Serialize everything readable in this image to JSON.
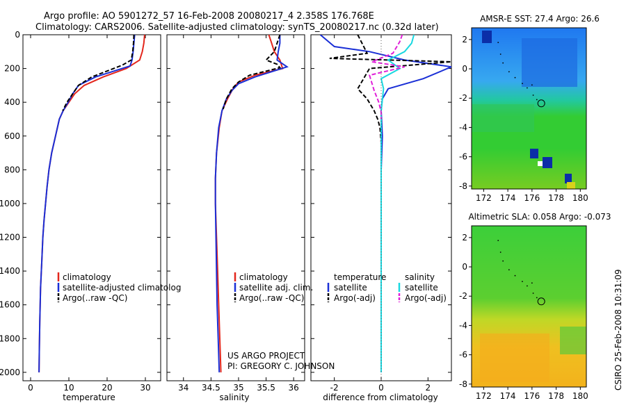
{
  "title": {
    "line1": "Argo profile: AO 5901272_57 16-Feb-2008 20080217_4 2.358S 176.768E",
    "line2": "Climatology: CARS2006. Satellite-adjusted climatology: synTS_20080217.nc (0.32d later)"
  },
  "footer": {
    "line1": "US ARGO PROJECT",
    "line2": "PI: GREGORY C. JOHNSON"
  },
  "timestamp": "CSIRO 25-Feb-2008 10:31:09",
  "colors": {
    "climatology": "#e3261c",
    "satellite": "#1a2fd6",
    "argo": "#000000",
    "salinity_sat": "#19d8e0",
    "salinity_argo": "#e020d8"
  },
  "chart_data": [
    {
      "type": "line",
      "panel": "temperature",
      "xlabel": "temperature",
      "ylabel": "",
      "xlim": [
        -2,
        34
      ],
      "ylim": [
        2050,
        0
      ],
      "xticks": [
        0,
        10,
        20,
        30
      ],
      "yticks": [
        0,
        200,
        400,
        600,
        800,
        1000,
        1200,
        1400,
        1600,
        1800,
        2000
      ],
      "series": [
        {
          "name": "climatology",
          "color": "#e3261c",
          "dash": "solid",
          "x": [
            29.8,
            29.6,
            29.2,
            28.5,
            25,
            19,
            14,
            11.5,
            10,
            8.5,
            7.5,
            6.5,
            5.5,
            4.8,
            4.3,
            3.9,
            3.5,
            3.2,
            2.9,
            2.6,
            2.4,
            2.3,
            2.2
          ],
          "y": [
            0,
            50,
            100,
            150,
            200,
            250,
            300,
            350,
            400,
            450,
            500,
            600,
            700,
            800,
            900,
            1000,
            1100,
            1200,
            1350,
            1500,
            1700,
            1850,
            2000
          ]
        },
        {
          "name": "satellite-adjusted climatology",
          "color": "#1a2fd6",
          "dash": "solid",
          "x": [
            27.2,
            27.0,
            26.8,
            26.5,
            26.0,
            17,
            12.5,
            11,
            9.8,
            8.5,
            7.5,
            6.5,
            5.5,
            4.8,
            4.3,
            3.9,
            3.5,
            3.2,
            2.9,
            2.6,
            2.4,
            2.3,
            2.2
          ],
          "y": [
            0,
            50,
            100,
            150,
            185,
            250,
            300,
            350,
            400,
            450,
            500,
            600,
            700,
            800,
            900,
            1000,
            1100,
            1200,
            1350,
            1500,
            1700,
            1850,
            2000
          ]
        },
        {
          "name": "Argo(..raw -QC)",
          "color": "#000000",
          "dash": "dashed",
          "x": [
            27.0,
            26.9,
            26.7,
            26.3,
            24,
            16,
            12.5,
            11,
            9.5,
            8.4
          ],
          "y": [
            0,
            50,
            100,
            150,
            180,
            250,
            300,
            350,
            400,
            450
          ]
        }
      ],
      "legend": [
        "climatology",
        "satellite-adjusted climatolog",
        "Argo(..raw -QC)"
      ]
    },
    {
      "type": "line",
      "panel": "salinity",
      "xlabel": "salinity",
      "ylabel": "",
      "xlim": [
        33.7,
        36.2
      ],
      "ylim": [
        2050,
        0
      ],
      "xticks": [
        34,
        34.5,
        35,
        35.5,
        36
      ],
      "xticklabels": [
        "34",
        "34.5",
        "35",
        "35.5",
        "36"
      ],
      "series": [
        {
          "name": "climatology",
          "color": "#e3261c",
          "dash": "solid",
          "x": [
            35.55,
            35.6,
            35.65,
            35.75,
            35.8,
            35.3,
            35.0,
            34.9,
            34.8,
            34.7,
            34.65,
            34.6,
            34.58,
            34.58,
            34.6,
            34.62,
            34.64,
            34.66,
            34.68
          ],
          "y": [
            0,
            50,
            100,
            150,
            200,
            240,
            280,
            320,
            380,
            450,
            550,
            700,
            850,
            1000,
            1200,
            1400,
            1600,
            1800,
            2000
          ]
        },
        {
          "name": "satellite adj. clim.",
          "color": "#1a2fd6",
          "dash": "solid",
          "x": [
            35.75,
            35.75,
            35.72,
            35.7,
            35.88,
            35.3,
            35.0,
            34.88,
            34.78,
            34.7,
            34.64,
            34.6,
            34.58,
            34.58,
            34.59,
            34.6,
            34.61,
            34.63,
            34.65
          ],
          "y": [
            0,
            50,
            100,
            150,
            190,
            250,
            290,
            330,
            380,
            450,
            550,
            700,
            850,
            1000,
            1200,
            1400,
            1600,
            1800,
            2000
          ]
        },
        {
          "name": "Argo(..raw -QC)",
          "color": "#000000",
          "dash": "dashed",
          "x": [
            35.75,
            35.7,
            35.65,
            35.5,
            35.7,
            35.75,
            35.2,
            35.0,
            34.88,
            34.78,
            34.72
          ],
          "y": [
            0,
            50,
            100,
            150,
            175,
            195,
            240,
            280,
            320,
            380,
            440
          ]
        }
      ],
      "legend": [
        "climatology",
        "satellite adj. clim.",
        "Argo(..raw -QC)"
      ],
      "annotations": [
        "US ARGO PROJECT",
        "PI: GREGORY C. JOHNSON"
      ]
    },
    {
      "type": "line",
      "panel": "difference from climatology",
      "xlabel": "difference from climatology",
      "ylabel": "",
      "xlim": [
        -3,
        3
      ],
      "ylim": [
        2050,
        0
      ],
      "xticks": [
        -2,
        0,
        2
      ],
      "series": [
        {
          "name": "temperature satellite",
          "color": "#1a2fd6",
          "dash": "solid",
          "x": [
            -2.6,
            -2.0,
            -0.5,
            1.0,
            3.0,
            1.8,
            0.3,
            0.05,
            0.0,
            0.05,
            0.0,
            0.0,
            0.0,
            0.0,
            0.0,
            0.0
          ],
          "y": [
            0,
            70,
            100,
            150,
            190,
            260,
            320,
            380,
            450,
            600,
            800,
            1000,
            1200,
            1500,
            1800,
            2000
          ]
        },
        {
          "name": "temperature Argo(-adj)",
          "color": "#000000",
          "dash": "dashed",
          "x": [
            -1.0,
            -0.6,
            -2.2,
            3.0,
            -0.5,
            -1.0,
            -0.6,
            -0.3,
            -0.15,
            -0.05,
            0.0
          ],
          "y": [
            0,
            110,
            140,
            160,
            200,
            320,
            380,
            450,
            500,
            550,
            640
          ]
        },
        {
          "name": "salinity satellite",
          "color": "#19d8e0",
          "dash": "solid",
          "x": [
            1.4,
            1.3,
            1.0,
            0.3,
            0.8,
            0.0,
            0.1,
            0.0,
            0.0,
            0.0,
            0.0,
            0.0,
            0.0,
            0.0
          ],
          "y": [
            0,
            50,
            100,
            150,
            200,
            260,
            320,
            450,
            600,
            800,
            1000,
            1400,
            1800,
            2000
          ]
        },
        {
          "name": "salinity Argo(-adj)",
          "color": "#e020d8",
          "dash": "dashed",
          "x": [
            0.9,
            0.8,
            0.5,
            -0.4,
            1.0,
            -0.5,
            -0.3,
            -0.1,
            0.0,
            0.0
          ],
          "y": [
            0,
            40,
            110,
            160,
            190,
            240,
            330,
            400,
            460,
            500
          ]
        }
      ],
      "legend": {
        "temperature_header": "temperature",
        "salinity_header": "salinity",
        "temperature_items": [
          "satellite",
          "Argo(-adj)"
        ],
        "salinity_items": [
          "satellite",
          "Argo(-adj)"
        ]
      }
    },
    {
      "type": "heatmap",
      "panel": "AMSR-E SST",
      "title": "AMSR-E SST: 27.4 Argo: 26.6",
      "xlim": [
        171,
        180.5
      ],
      "ylim": [
        -8.2,
        2.8
      ],
      "xticks": [
        172,
        174,
        176,
        178,
        180
      ],
      "yticks": [
        2,
        0,
        -2,
        -4,
        -6,
        -8
      ],
      "marker": {
        "x": 176.768,
        "y": -2.358
      }
    },
    {
      "type": "heatmap",
      "panel": "Altimetric SLA",
      "title": "Altimetric SLA: 0.058 Argo: -0.073",
      "xlim": [
        171,
        180.5
      ],
      "ylim": [
        -8.2,
        2.8
      ],
      "xticks": [
        172,
        174,
        176,
        178,
        180
      ],
      "yticks": [
        2,
        0,
        -2,
        -4,
        -6,
        -8
      ],
      "marker": {
        "x": 176.768,
        "y": -2.358
      }
    }
  ]
}
